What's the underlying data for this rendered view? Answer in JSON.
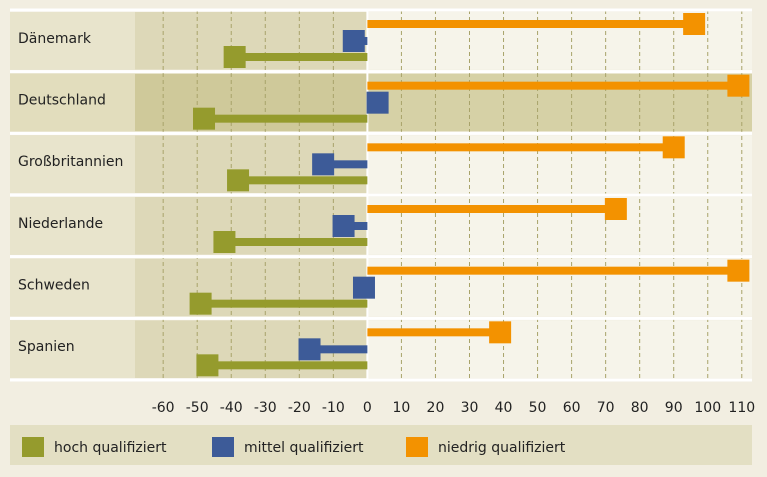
{
  "chart_data": {
    "type": "bar",
    "categories": [
      "Dänemark",
      "Deutschland",
      "Großbritannien",
      "Niederlande",
      "Schweden",
      "Spanien"
    ],
    "series": [
      {
        "name": "hoch qualifiziert",
        "color": "#959b2d",
        "values": [
          -39,
          -48,
          -38,
          -42,
          -49,
          -47
        ]
      },
      {
        "name": "mittel qualifiziert",
        "color": "#3d5b98",
        "values": [
          -4,
          3,
          -13,
          -7,
          -1,
          -17
        ]
      },
      {
        "name": "niedrig qualifiziert",
        "color": "#f39200",
        "values": [
          96,
          109,
          90,
          73,
          109,
          39
        ]
      }
    ],
    "xlim": [
      -105,
      113
    ],
    "xticks": [
      -60,
      -50,
      -40,
      -30,
      -20,
      -10,
      0,
      10,
      20,
      30,
      40,
      50,
      60,
      70,
      80,
      90,
      100,
      110
    ],
    "grid": true,
    "highlight": "Deutschland"
  }
}
